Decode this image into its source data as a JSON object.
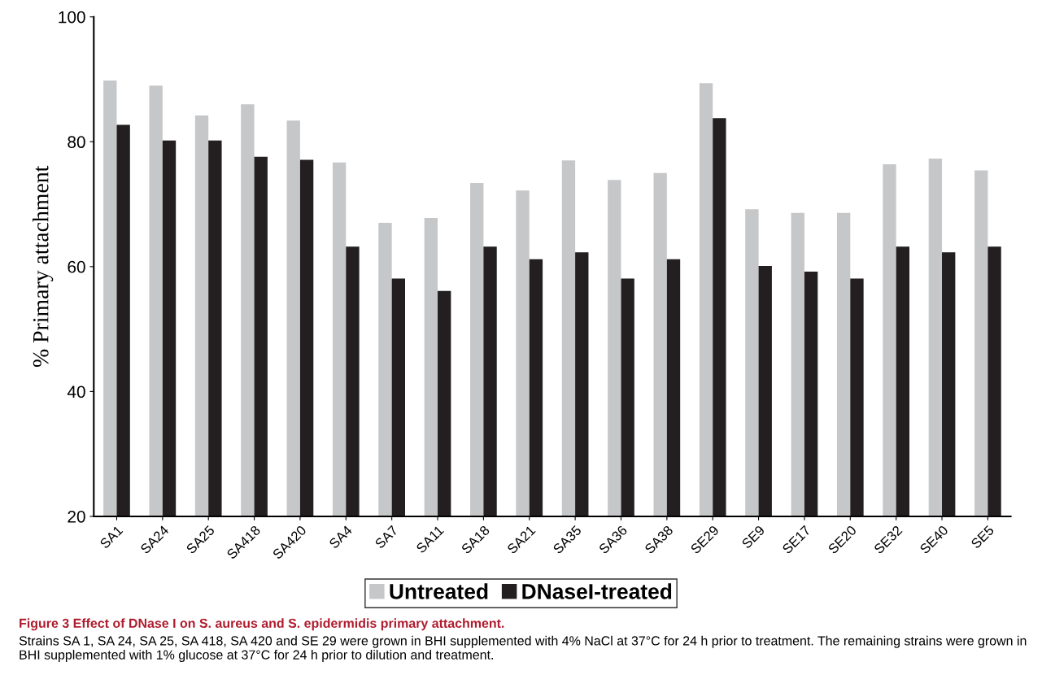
{
  "chart_data": {
    "type": "bar",
    "title": "Figure 3 Effect of DNase I on S. aureus and S. epidermidis primary attachment.",
    "ylabel": "% Primary attachment",
    "categories": [
      "SA1",
      "SA24",
      "SA25",
      "SA418",
      "SA420",
      "SA4",
      "SA7",
      "SA11",
      "SA18",
      "SA21",
      "SA35",
      "SA36",
      "SA38",
      "SE29",
      "SE9",
      "SE17",
      "SE20",
      "SE32",
      "SE40",
      "SE5"
    ],
    "series": [
      {
        "name": "Untreated",
        "color": "#c6c7c9",
        "values": [
          89.8,
          89.0,
          84.2,
          86.0,
          83.4,
          76.7,
          67.0,
          67.8,
          73.4,
          72.2,
          77.0,
          73.9,
          75.0,
          89.4,
          69.2,
          68.6,
          68.6,
          76.4,
          77.3,
          75.4
        ]
      },
      {
        "name": "DNaseI-treated",
        "color": "#231f20",
        "values": [
          82.7,
          80.2,
          80.2,
          77.6,
          77.1,
          63.2,
          58.1,
          56.1,
          63.2,
          61.2,
          62.3,
          58.1,
          61.2,
          83.8,
          60.1,
          59.2,
          58.1,
          63.2,
          62.3,
          63.2
        ]
      }
    ],
    "ylim": [
      20,
      100
    ],
    "yticks": [
      20,
      40,
      60,
      80,
      100
    ],
    "grid": false,
    "legend": "bottom",
    "annotations": [
      "Strains SA 1, SA 24, SA 25, SA 418, SA 420 and SE 29 were grown in BHI supplemented with 4% NaCl at 37°C for 24 h prior to treatment. The remaining strains were grown in BHI supplemented with 1% glucose at 37°C for 24 h prior to dilution and treatment."
    ]
  }
}
